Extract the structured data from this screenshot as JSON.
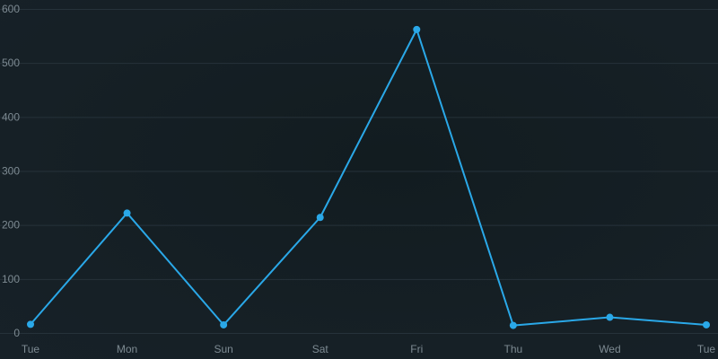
{
  "chart_data": {
    "type": "line",
    "title": "",
    "xlabel": "",
    "ylabel": "",
    "categories": [
      "Tue",
      "Mon",
      "Sun",
      "Sat",
      "Fri",
      "Thu",
      "Wed",
      "Tue"
    ],
    "yticks": [
      0,
      100,
      200,
      300,
      400,
      500,
      600
    ],
    "ylim": [
      0,
      600
    ],
    "grid": true,
    "legend": "none",
    "series": [
      {
        "values": [
          16,
          222,
          15,
          214,
          562,
          14,
          29,
          15
        ],
        "color": "#2aa8e8"
      }
    ]
  }
}
